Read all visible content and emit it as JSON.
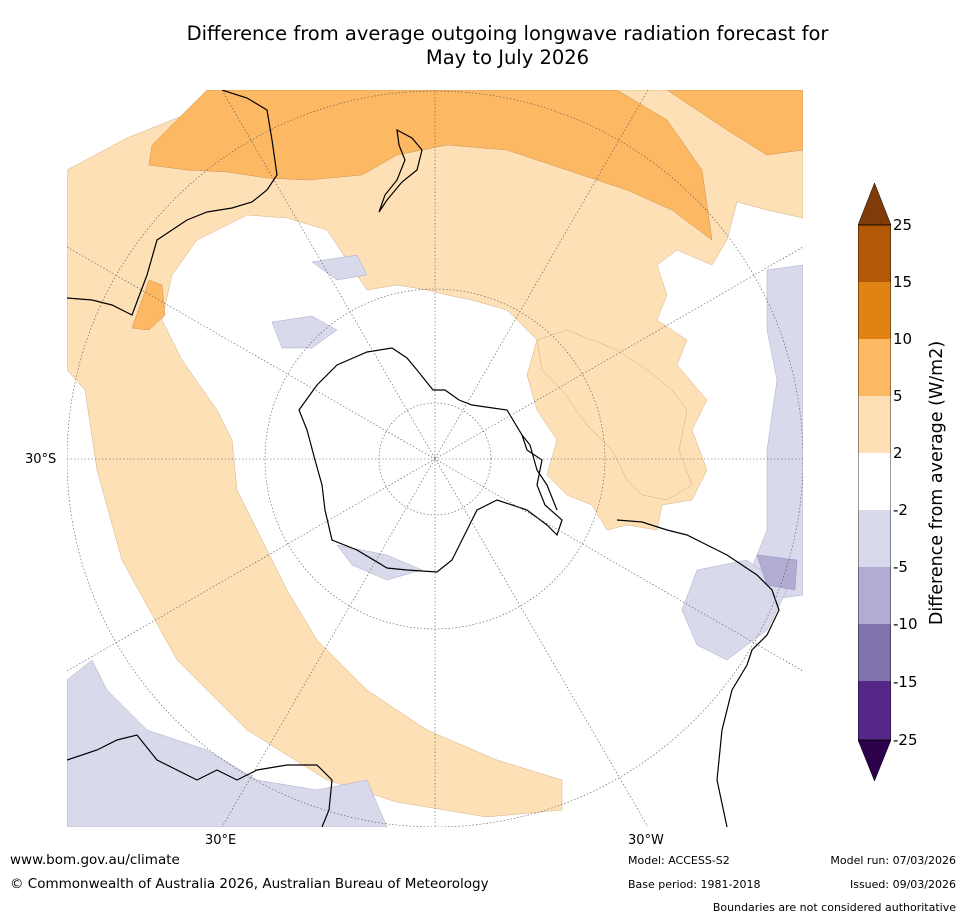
{
  "title": {
    "line1": "Difference from average outgoing longwave radiation forecast for",
    "line2": "May to July 2026"
  },
  "map": {
    "projection": "south polar stereographic",
    "labels": {
      "lat": "30°S",
      "lon_east": "30°E",
      "lon_west": "30°W"
    },
    "legend_classes": [
      {
        "range": "> 25",
        "color": "#7f3b08"
      },
      {
        "range": "15 to 25",
        "color": "#b35806"
      },
      {
        "range": "10 to 15",
        "color": "#e08214"
      },
      {
        "range": "5 to 10",
        "color": "#fdb863"
      },
      {
        "range": "2 to 5",
        "color": "#fee0b6"
      },
      {
        "range": "-2 to 2",
        "color": "#ffffff"
      },
      {
        "range": "-5 to -2",
        "color": "#d8daeb"
      },
      {
        "range": "-10 to -5",
        "color": "#b2abd2"
      },
      {
        "range": "-15 to -10",
        "color": "#8073ac"
      },
      {
        "range": "-25 to -15",
        "color": "#542788"
      },
      {
        "range": "< -25",
        "color": "#2d004b"
      }
    ]
  },
  "colorbar": {
    "label": "Difference from average (W/m2)",
    "ticks": [
      "25",
      "15",
      "10",
      "5",
      "2",
      "-2",
      "-5",
      "-10",
      "-15",
      "-25"
    ],
    "colors": [
      "#7f3b08",
      "#b35806",
      "#e08214",
      "#fdb863",
      "#fee0b6",
      "#ffffff",
      "#d8daeb",
      "#b2abd2",
      "#8073ac",
      "#542788",
      "#2d004b"
    ]
  },
  "footer": {
    "website": "www.bom.gov.au/climate",
    "copyright": "© Commonwealth of Australia 2026, Australian Bureau of Meteorology",
    "model": "Model: ACCESS-S2",
    "base_period": "Base period: 1981-2018",
    "model_run": "Model run: 07/03/2026",
    "issued": "Issued: 09/03/2026",
    "disclaimer": "Boundaries are not considered authoritative"
  }
}
